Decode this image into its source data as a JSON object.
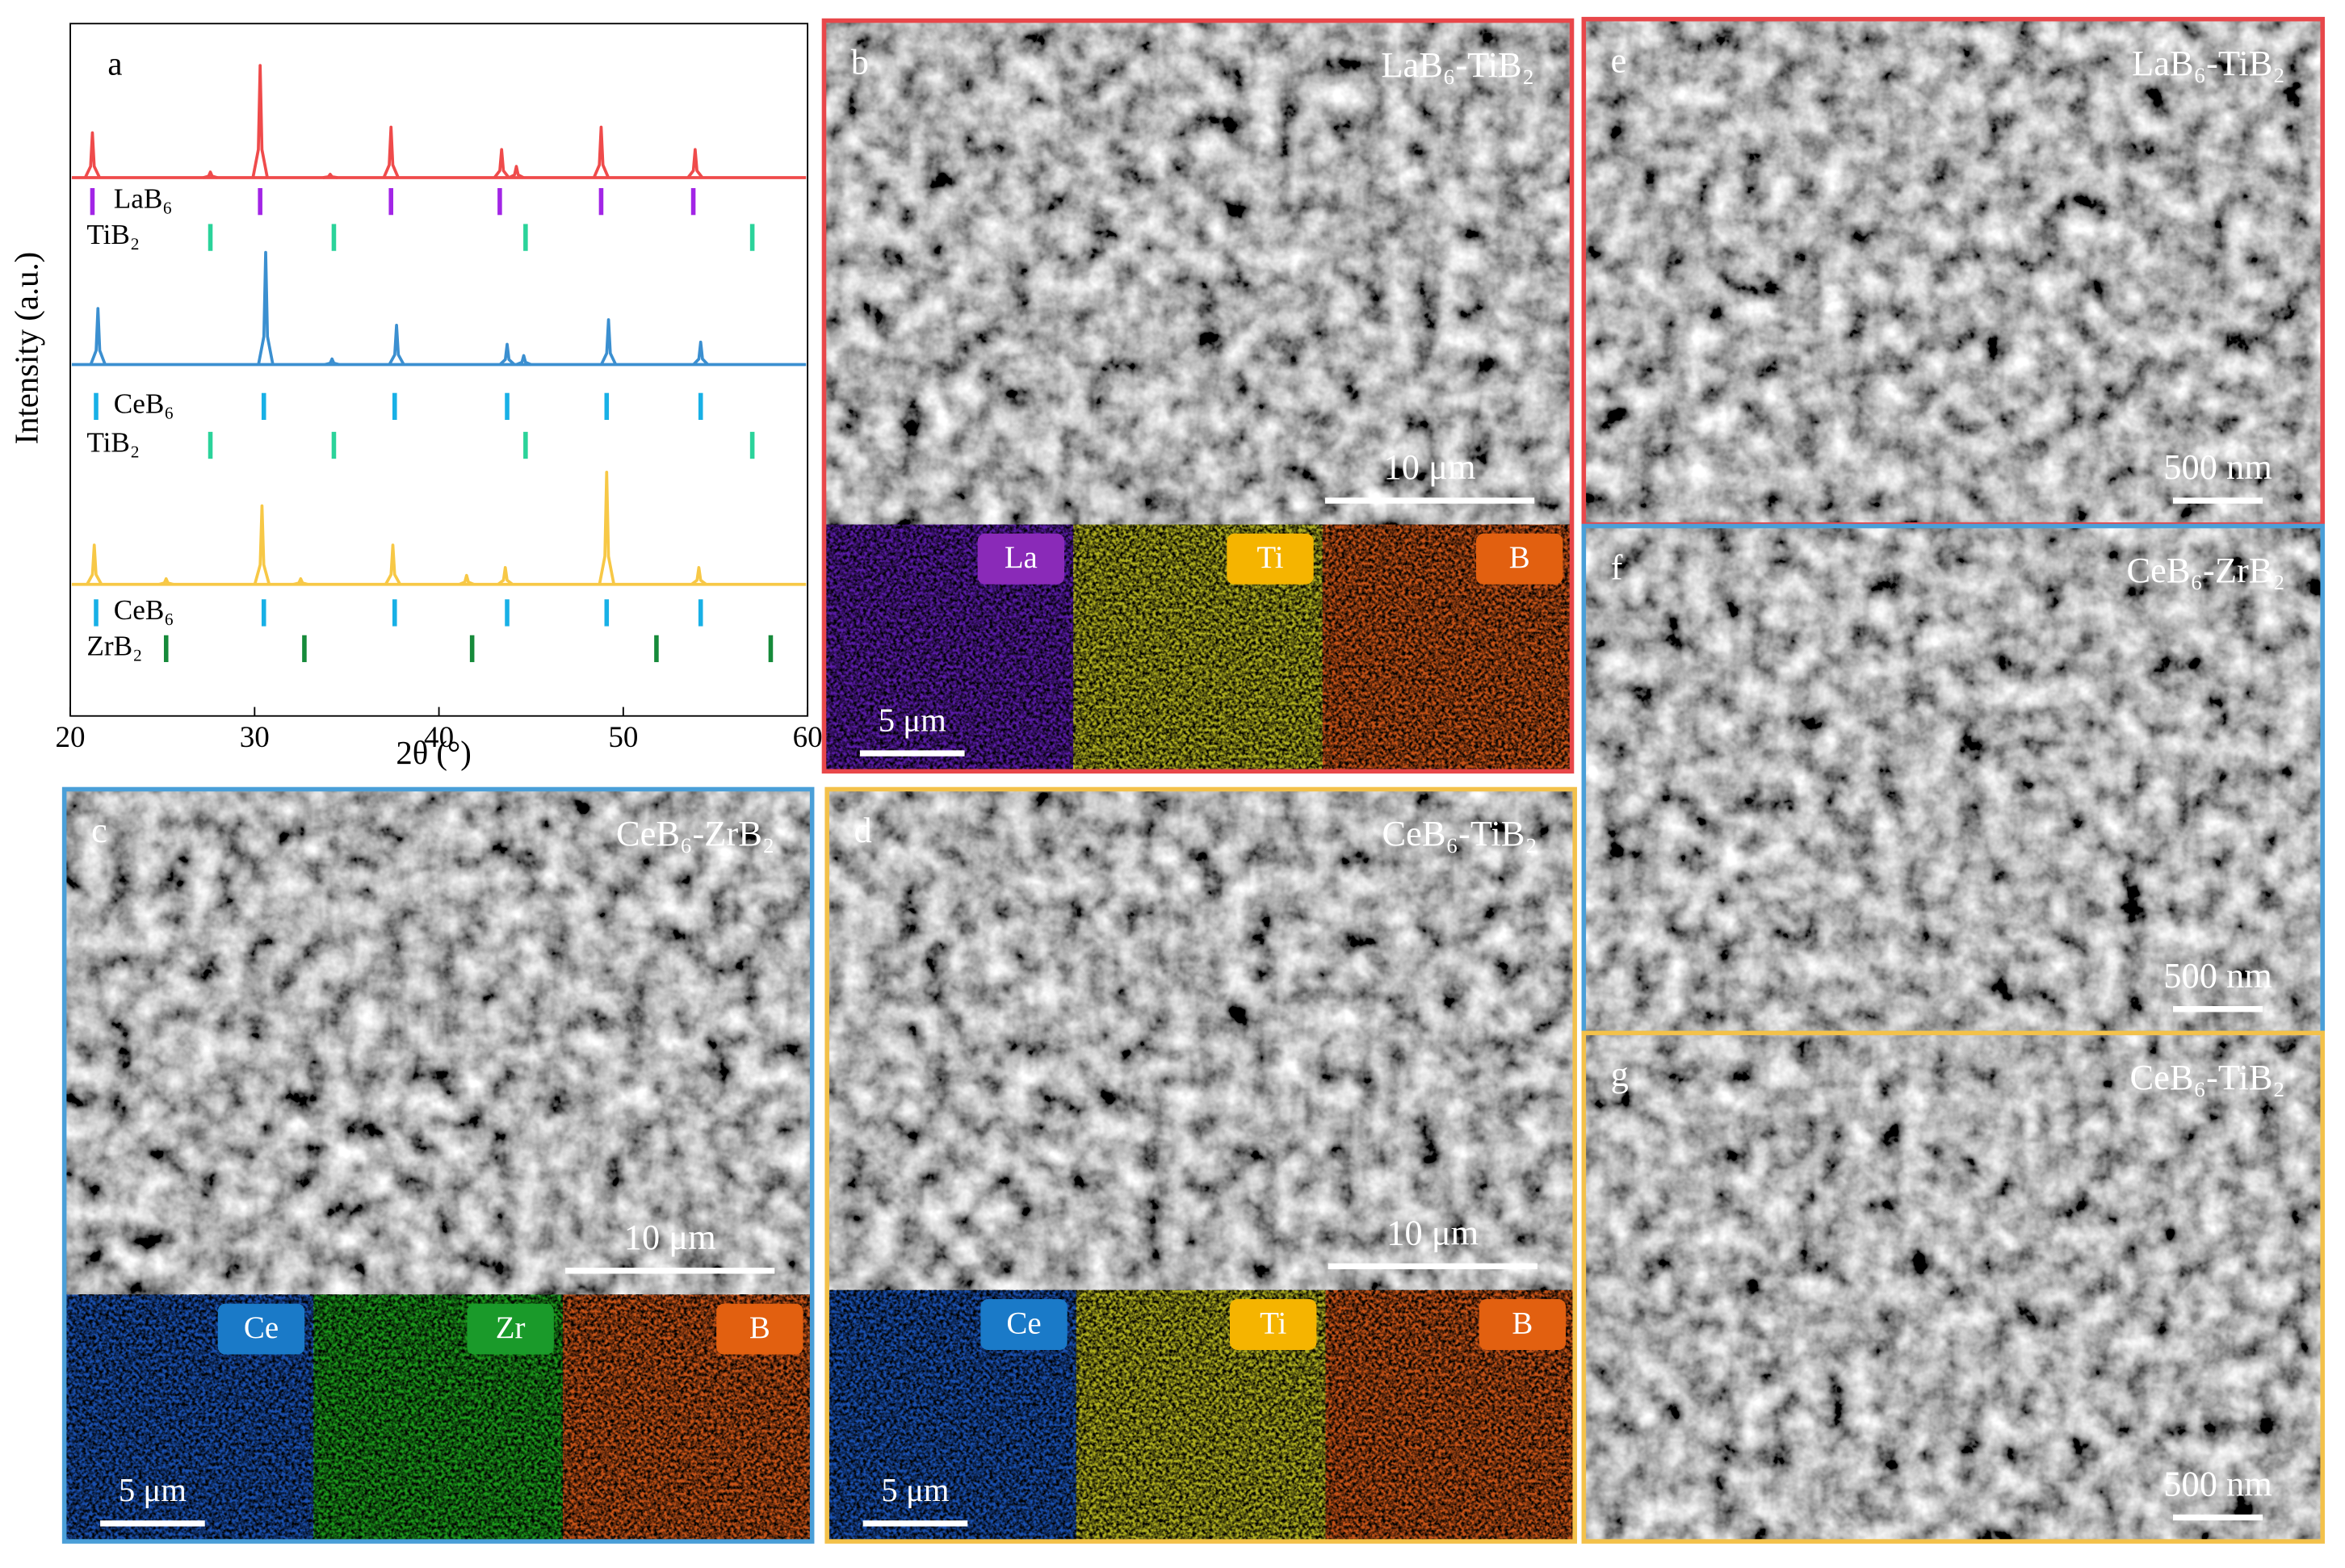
{
  "chart_data": {
    "type": "xrd",
    "label": "a",
    "xlabel": "2θ (°)",
    "ylabel": "Intensity (a.u.)",
    "xlim": [
      20,
      60
    ],
    "xticks": [
      20,
      30,
      40,
      50,
      60
    ],
    "ylim": [
      0,
      100
    ],
    "series": [
      {
        "color": "#ef4b4b",
        "x": [
          21.2,
          27.6,
          30.3,
          34.1,
          37.4,
          43.4,
          44.2,
          48.8,
          53.9
        ],
        "values": [
          40,
          5,
          100,
          3,
          45,
          25,
          10,
          45,
          25
        ],
        "references": [
          {
            "name": "LaB₆",
            "color": "#a225e6",
            "x": [
              21.2,
              30.3,
              37.4,
              43.3,
              48.8,
              53.8
            ]
          },
          {
            "name": "TiB₂",
            "color": "#2bd39a",
            "x": [
              27.6,
              34.3,
              44.7,
              57.0
            ]
          }
        ]
      },
      {
        "color": "#3b8fd0",
        "x": [
          21.5,
          30.6,
          34.2,
          37.7,
          43.7,
          44.6,
          49.2,
          54.2
        ],
        "values": [
          50,
          100,
          5,
          35,
          18,
          8,
          40,
          20
        ],
        "references": [
          {
            "name": "CeB₆",
            "color": "#18b0e6",
            "x": [
              21.4,
              30.5,
              37.6,
              43.7,
              49.1,
              54.2
            ]
          },
          {
            "name": "TiB₂",
            "color": "#2bd39a",
            "x": [
              27.6,
              34.3,
              44.7,
              57.0
            ]
          }
        ]
      },
      {
        "color": "#f7c846",
        "x": [
          21.3,
          25.2,
          30.4,
          32.5,
          37.5,
          41.5,
          43.6,
          49.1,
          54.1
        ],
        "values": [
          35,
          5,
          70,
          5,
          35,
          8,
          15,
          100,
          15
        ],
        "references": [
          {
            "name": "CeB₆",
            "color": "#18b0e6",
            "x": [
              21.4,
              30.5,
              37.6,
              43.7,
              49.1,
              54.2
            ]
          },
          {
            "name": "ZrB₂",
            "color": "#168a3a",
            "x": [
              25.2,
              32.7,
              41.8,
              51.8,
              58.0
            ]
          }
        ]
      }
    ]
  },
  "panels": [
    {
      "label": "b",
      "title": "LaB₆-TiB₂",
      "scale_bar": "10 μm",
      "border": "#e8474a",
      "map_scale_bar": "5 μm",
      "maps": [
        {
          "element": "La",
          "color": "#5a1ca8",
          "tag": "#8a2ab8"
        },
        {
          "element": "Ti",
          "color": "#b0b020",
          "tag": "#f5b400"
        },
        {
          "element": "B",
          "color": "#c85418",
          "tag": "#e26010"
        }
      ]
    },
    {
      "label": "c",
      "title": "CeB₆-ZrB₂",
      "scale_bar": "10 μm",
      "border": "#4a9fd8",
      "map_scale_bar": "5 μm",
      "maps": [
        {
          "element": "Ce",
          "color": "#1a50b0",
          "tag": "#1a7ac8"
        },
        {
          "element": "Zr",
          "color": "#1c9a1c",
          "tag": "#1a9a2a"
        },
        {
          "element": "B",
          "color": "#c85418",
          "tag": "#e26010"
        }
      ]
    },
    {
      "label": "d",
      "title": "CeB₆-TiB₂",
      "scale_bar": "10 μm",
      "border": "#f3c14a",
      "map_scale_bar": "5 μm",
      "maps": [
        {
          "element": "Ce",
          "color": "#1a50b0",
          "tag": "#1a7ac8"
        },
        {
          "element": "Ti",
          "color": "#b0b020",
          "tag": "#f5b400"
        },
        {
          "element": "B",
          "color": "#c85418",
          "tag": "#e26010"
        }
      ]
    },
    {
      "label": "e",
      "title": "LaB₆-TiB₂",
      "scale_bar": "500 nm",
      "border": "#e8474a"
    },
    {
      "label": "f",
      "title": "CeB₆-ZrB₂",
      "scale_bar": "500 nm",
      "border": "#4a9fd8"
    },
    {
      "label": "g",
      "title": "CeB₆-TiB₂",
      "scale_bar": "500 nm",
      "border": "#f3c14a"
    }
  ]
}
